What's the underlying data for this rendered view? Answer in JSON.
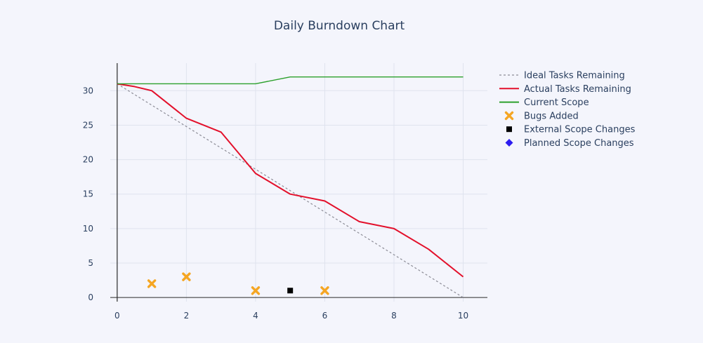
{
  "chart_data": {
    "type": "line",
    "title": "Daily Burndown Chart",
    "xlabel": "",
    "ylabel": "",
    "xlim": [
      -0.2,
      10.7
    ],
    "ylim": [
      -0.6,
      34
    ],
    "x_ticks": [
      0,
      2,
      4,
      6,
      8,
      10
    ],
    "y_ticks": [
      0,
      5,
      10,
      15,
      20,
      25,
      30
    ],
    "grid": true,
    "legend_position": "top-right",
    "series": [
      {
        "name": "Ideal Tasks Remaining",
        "type": "line",
        "style": "dotted",
        "color": "#8c8c96",
        "x": [
          0,
          10
        ],
        "y": [
          31,
          0
        ]
      },
      {
        "name": "Actual Tasks Remaining",
        "type": "line",
        "style": "solid",
        "color": "#e3102b",
        "x": [
          0,
          0.5,
          1,
          2,
          3,
          4,
          5,
          6,
          7,
          8,
          9,
          10
        ],
        "y": [
          31,
          30.6,
          30,
          26,
          24,
          18,
          15,
          14,
          11,
          10,
          7,
          3
        ]
      },
      {
        "name": "Current Scope",
        "type": "line",
        "style": "solid",
        "color": "#2ca02c",
        "x": [
          0,
          4,
          5,
          10
        ],
        "y": [
          31,
          31,
          32,
          32
        ]
      },
      {
        "name": "Bugs Added",
        "type": "scatter",
        "marker": "x",
        "color": "#f5a623",
        "x": [
          1,
          2,
          4,
          6
        ],
        "y": [
          2,
          3,
          1,
          1
        ]
      },
      {
        "name": "External Scope Changes",
        "type": "scatter",
        "marker": "square",
        "color": "#000000",
        "x": [
          5
        ],
        "y": [
          1
        ]
      },
      {
        "name": "Planned Scope Changes",
        "type": "scatter",
        "marker": "diamond",
        "color": "#2d1cf0",
        "x": [],
        "y": []
      }
    ]
  }
}
